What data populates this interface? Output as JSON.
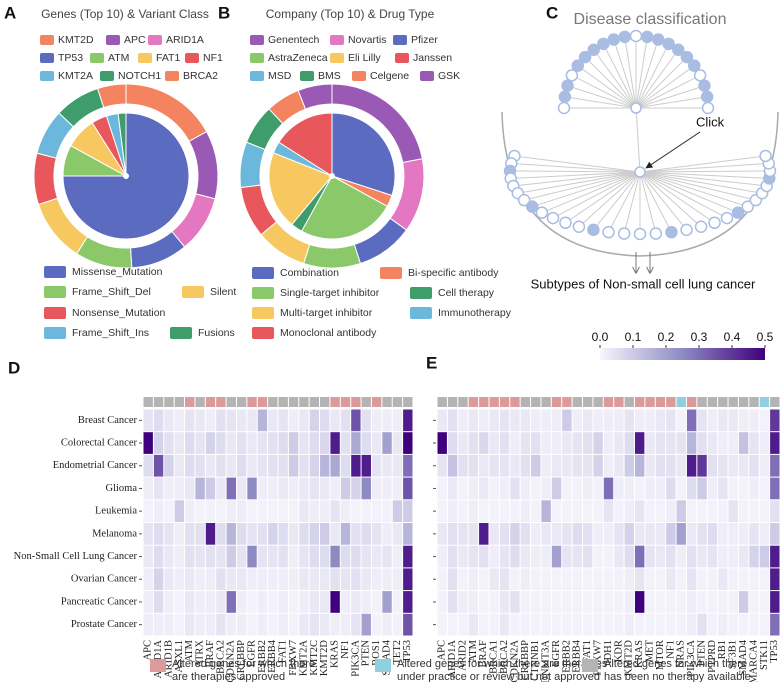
{
  "chart_data": [
    {
      "type": "pie",
      "label": "A",
      "title": "Genes (Top 10) & Variant Class",
      "outer": {
        "names": [
          "KMT2D",
          "APC",
          "ARID1A",
          "TP53",
          "ATM",
          "FAT1",
          "NF1",
          "KMT2A",
          "NOTCH1",
          "BRCA2"
        ],
        "colors": [
          "#f4845f",
          "#9b59b6",
          "#e377c2",
          "#5b6bc0",
          "#8bc86a",
          "#f6c85f",
          "#e8575c",
          "#6cb8dc",
          "#3e9d6b",
          "#f4845f"
        ],
        "values": [
          17,
          12,
          10,
          10,
          10,
          11,
          9,
          8,
          8,
          5
        ]
      },
      "inner": {
        "names": [
          "Missense_Mutation",
          "Frame_Shift_Del",
          "Silent",
          "Nonsense_Mutation",
          "Frame_Shift_Ins",
          "Fusions"
        ],
        "colors": [
          "#5b6bc0",
          "#8bc86a",
          "#f6c85f",
          "#e8575c",
          "#6cb8dc",
          "#3e9d6b"
        ],
        "values": [
          75,
          8,
          8,
          4,
          3,
          2
        ]
      }
    },
    {
      "type": "pie",
      "label": "B",
      "title": "Company (Top 10) & Drug Type",
      "outer": {
        "names": [
          "Genentech",
          "Novartis",
          "Pfizer",
          "AstraZeneca",
          "Eli Lilly",
          "Janssen",
          "MSD",
          "BMS",
          "Celgene",
          "GSK"
        ],
        "colors": [
          "#9b59b6",
          "#e377c2",
          "#5b6bc0",
          "#8bc86a",
          "#f6c85f",
          "#e8575c",
          "#6cb8dc",
          "#3e9d6b",
          "#f4845f",
          "#9b59b6"
        ],
        "values": [
          22,
          13,
          10,
          10,
          9,
          9,
          8,
          7,
          6,
          6
        ]
      },
      "inner": {
        "names": [
          "Combination",
          "Bi-specific antibody",
          "Single-target inhibitor",
          "Cell therapy",
          "Multi-target inhibitor",
          "Immunotherapy",
          "Monoclonal antibody"
        ],
        "colors": [
          "#5b6bc0",
          "#f4845f",
          "#8bc86a",
          "#3e9d6b",
          "#f6c85f",
          "#6cb8dc",
          "#e8575c"
        ],
        "values": [
          30,
          3,
          25,
          3,
          20,
          3,
          16
        ]
      }
    },
    {
      "type": "heatmap",
      "label": "D",
      "rows": [
        "Breast Cancer",
        "Colorectal Cancer",
        "Endometrial Cancer",
        "Glioma",
        "Leukemia",
        "Melanoma",
        "Non-Small Cell Lung Cancer",
        "Ovarian Cancer",
        "Pancreatic Cancer",
        "Prostate Cancer"
      ],
      "columns": [
        "APC",
        "ARID1A",
        "ARID1B",
        "ASXL1",
        "ATM",
        "ATRX",
        "BRAF",
        "BRCA2",
        "CDKN2A",
        "CREBBP",
        "EGFR",
        "ERBB2",
        "ERBB4",
        "FAT1",
        "FBXW7",
        "KMT2A",
        "KMT2C",
        "KMT2D",
        "KRAS",
        "NF1",
        "PIK3CA",
        "PTEN",
        "ROS1",
        "SMAD4",
        "TET2",
        "TP53"
      ],
      "column_colors": [
        "#b4b4b4",
        "#b4b4b4",
        "#b4b4b4",
        "#b4b4b4",
        "#dc9a9a",
        "#b4b4b4",
        "#dc9a9a",
        "#dc9a9a",
        "#b4b4b4",
        "#b4b4b4",
        "#dc9a9a",
        "#dc9a9a",
        "#b4b4b4",
        "#b4b4b4",
        "#b4b4b4",
        "#b4b4b4",
        "#b4b4b4",
        "#b4b4b4",
        "#dc9a9a",
        "#dc9a9a",
        "#dc9a9a",
        "#b4b4b4",
        "#dc9a9a",
        "#b4b4b4",
        "#b4b4b4",
        "#b4b4b4"
      ],
      "values": [
        [
          0.04,
          0.06,
          0.03,
          0.02,
          0.04,
          0.03,
          0.02,
          0.05,
          0.04,
          0.03,
          0.03,
          0.15,
          0.03,
          0.04,
          0.02,
          0.03,
          0.08,
          0.06,
          0.03,
          0.05,
          0.35,
          0.05,
          0.02,
          0.02,
          0.02,
          0.45
        ],
        [
          0.5,
          0.08,
          0.05,
          0.03,
          0.06,
          0.04,
          0.08,
          0.06,
          0.03,
          0.05,
          0.03,
          0.04,
          0.05,
          0.06,
          0.1,
          0.04,
          0.06,
          0.07,
          0.45,
          0.05,
          0.18,
          0.06,
          0.03,
          0.2,
          0.03,
          0.5
        ],
        [
          0.06,
          0.35,
          0.08,
          0.03,
          0.06,
          0.05,
          0.03,
          0.05,
          0.03,
          0.06,
          0.03,
          0.04,
          0.05,
          0.05,
          0.1,
          0.05,
          0.08,
          0.15,
          0.18,
          0.06,
          0.45,
          0.45,
          0.04,
          0.03,
          0.03,
          0.3
        ],
        [
          0.02,
          0.04,
          0.02,
          0.02,
          0.03,
          0.15,
          0.1,
          0.03,
          0.3,
          0.03,
          0.25,
          0.02,
          0.02,
          0.03,
          0.02,
          0.03,
          0.04,
          0.03,
          0.02,
          0.1,
          0.08,
          0.25,
          0.02,
          0.02,
          0.02,
          0.35
        ],
        [
          0.01,
          0.02,
          0.01,
          0.1,
          0.02,
          0.01,
          0.01,
          0.01,
          0.02,
          0.02,
          0.01,
          0.01,
          0.01,
          0.01,
          0.01,
          0.03,
          0.02,
          0.02,
          0.04,
          0.02,
          0.01,
          0.01,
          0.01,
          0.01,
          0.1,
          0.1
        ],
        [
          0.04,
          0.06,
          0.04,
          0.02,
          0.05,
          0.05,
          0.45,
          0.06,
          0.15,
          0.06,
          0.04,
          0.05,
          0.08,
          0.06,
          0.03,
          0.06,
          0.08,
          0.1,
          0.03,
          0.15,
          0.05,
          0.06,
          0.04,
          0.02,
          0.03,
          0.15
        ],
        [
          0.03,
          0.06,
          0.03,
          0.02,
          0.05,
          0.04,
          0.05,
          0.04,
          0.1,
          0.04,
          0.25,
          0.04,
          0.04,
          0.05,
          0.02,
          0.04,
          0.06,
          0.06,
          0.25,
          0.06,
          0.06,
          0.04,
          0.03,
          0.04,
          0.02,
          0.45
        ],
        [
          0.02,
          0.08,
          0.03,
          0.02,
          0.03,
          0.02,
          0.02,
          0.05,
          0.03,
          0.03,
          0.02,
          0.02,
          0.02,
          0.02,
          0.02,
          0.03,
          0.03,
          0.03,
          0.05,
          0.04,
          0.05,
          0.03,
          0.02,
          0.02,
          0.02,
          0.45
        ],
        [
          0.02,
          0.06,
          0.02,
          0.01,
          0.03,
          0.02,
          0.02,
          0.03,
          0.3,
          0.02,
          0.01,
          0.02,
          0.01,
          0.02,
          0.01,
          0.02,
          0.03,
          0.03,
          0.5,
          0.02,
          0.03,
          0.02,
          0.01,
          0.2,
          0.01,
          0.45
        ],
        [
          0.02,
          0.02,
          0.02,
          0.01,
          0.03,
          0.02,
          0.02,
          0.04,
          0.02,
          0.02,
          0.01,
          0.02,
          0.01,
          0.02,
          0.01,
          0.03,
          0.04,
          0.03,
          0.02,
          0.02,
          0.04,
          0.2,
          0.01,
          0.02,
          0.01,
          0.35
        ]
      ]
    },
    {
      "type": "heatmap",
      "label": "E",
      "columns": [
        "APC",
        "ARID1A",
        "ARID2",
        "ATM",
        "BRAF",
        "BRCA1",
        "BRCA2",
        "CDKN2A",
        "CREBBP",
        "CTNNB1",
        "DNMT3A",
        "EGFR",
        "ERBB2",
        "ERBB4",
        "FAT1",
        "FBXW7",
        "IDH1",
        "KDR",
        "KMT2D",
        "KRAS",
        "MET",
        "MTOR",
        "NF1",
        "NRAS",
        "PIK3CA",
        "PTEN",
        "PTPRD",
        "RB1",
        "SF3B1",
        "SMAD4",
        "SMARCA4",
        "STK11",
        "TP53"
      ],
      "column_colors": [
        "#b4b4b4",
        "#b4b4b4",
        "#b4b4b4",
        "#dc9a9a",
        "#dc9a9a",
        "#dc9a9a",
        "#dc9a9a",
        "#dc9a9a",
        "#b4b4b4",
        "#b4b4b4",
        "#b4b4b4",
        "#dc9a9a",
        "#dc9a9a",
        "#b4b4b4",
        "#b4b4b4",
        "#b4b4b4",
        "#dc9a9a",
        "#dc9a9a",
        "#b4b4b4",
        "#dc9a9a",
        "#dc9a9a",
        "#dc9a9a",
        "#dc9a9a",
        "#8fd0e0",
        "#dc9a9a",
        "#b4b4b4",
        "#b4b4b4",
        "#b4b4b4",
        "#b4b4b4",
        "#b4b4b4",
        "#b4b4b4",
        "#8fd0e0",
        "#b4b4b4"
      ],
      "values": [
        [
          0.03,
          0.05,
          0.02,
          0.03,
          0.02,
          0.03,
          0.04,
          0.03,
          0.03,
          0.02,
          0.02,
          0.02,
          0.1,
          0.02,
          0.03,
          0.02,
          0.02,
          0.02,
          0.04,
          0.02,
          0.02,
          0.03,
          0.04,
          0.01,
          0.3,
          0.04,
          0.02,
          0.03,
          0.03,
          0.02,
          0.02,
          0.01,
          0.4
        ],
        [
          0.5,
          0.06,
          0.03,
          0.05,
          0.07,
          0.03,
          0.05,
          0.02,
          0.04,
          0.05,
          0.02,
          0.02,
          0.03,
          0.04,
          0.05,
          0.08,
          0.02,
          0.03,
          0.06,
          0.45,
          0.03,
          0.04,
          0.04,
          0.04,
          0.15,
          0.05,
          0.03,
          0.02,
          0.02,
          0.12,
          0.04,
          0.02,
          0.45
        ],
        [
          0.04,
          0.12,
          0.05,
          0.05,
          0.03,
          0.04,
          0.04,
          0.03,
          0.05,
          0.1,
          0.02,
          0.03,
          0.03,
          0.04,
          0.04,
          0.08,
          0.02,
          0.03,
          0.1,
          0.15,
          0.03,
          0.05,
          0.05,
          0.03,
          0.45,
          0.4,
          0.05,
          0.04,
          0.03,
          0.03,
          0.05,
          0.02,
          0.3
        ],
        [
          0.01,
          0.03,
          0.01,
          0.02,
          0.03,
          0.01,
          0.02,
          0.05,
          0.02,
          0.01,
          0.02,
          0.1,
          0.01,
          0.01,
          0.02,
          0.01,
          0.3,
          0.02,
          0.02,
          0.01,
          0.02,
          0.02,
          0.06,
          0.01,
          0.06,
          0.1,
          0.02,
          0.04,
          0.01,
          0.01,
          0.02,
          0.01,
          0.3
        ],
        [
          0.01,
          0.02,
          0.01,
          0.02,
          0.01,
          0.01,
          0.01,
          0.01,
          0.02,
          0.01,
          0.15,
          0.01,
          0.01,
          0.01,
          0.01,
          0.01,
          0.04,
          0.01,
          0.02,
          0.04,
          0.01,
          0.01,
          0.02,
          0.1,
          0.01,
          0.01,
          0.01,
          0.01,
          0.04,
          0.01,
          0.01,
          0.01,
          0.05
        ],
        [
          0.03,
          0.05,
          0.04,
          0.04,
          0.45,
          0.03,
          0.05,
          0.08,
          0.05,
          0.02,
          0.03,
          0.03,
          0.04,
          0.06,
          0.05,
          0.02,
          0.02,
          0.04,
          0.08,
          0.03,
          0.03,
          0.03,
          0.1,
          0.2,
          0.03,
          0.05,
          0.06,
          0.02,
          0.02,
          0.02,
          0.04,
          0.02,
          0.1
        ],
        [
          0.02,
          0.05,
          0.03,
          0.04,
          0.05,
          0.02,
          0.04,
          0.06,
          0.03,
          0.02,
          0.02,
          0.2,
          0.04,
          0.04,
          0.05,
          0.01,
          0.01,
          0.03,
          0.06,
          0.3,
          0.04,
          0.03,
          0.05,
          0.02,
          0.05,
          0.03,
          0.04,
          0.02,
          0.02,
          0.03,
          0.08,
          0.1,
          0.45
        ],
        [
          0.01,
          0.05,
          0.01,
          0.02,
          0.01,
          0.03,
          0.04,
          0.01,
          0.02,
          0.01,
          0.01,
          0.01,
          0.01,
          0.01,
          0.01,
          0.01,
          0.01,
          0.01,
          0.02,
          0.04,
          0.01,
          0.01,
          0.03,
          0.01,
          0.04,
          0.01,
          0.01,
          0.03,
          0.01,
          0.01,
          0.01,
          0.01,
          0.45
        ],
        [
          0.01,
          0.05,
          0.02,
          0.02,
          0.01,
          0.01,
          0.03,
          0.05,
          0.01,
          0.01,
          0.01,
          0.01,
          0.01,
          0.01,
          0.01,
          0.01,
          0.01,
          0.01,
          0.02,
          0.5,
          0.01,
          0.01,
          0.01,
          0.01,
          0.02,
          0.01,
          0.01,
          0.01,
          0.01,
          0.1,
          0.01,
          0.01,
          0.45
        ],
        [
          0.01,
          0.01,
          0.01,
          0.03,
          0.01,
          0.01,
          0.03,
          0.01,
          0.01,
          0.01,
          0.01,
          0.01,
          0.01,
          0.01,
          0.01,
          0.01,
          0.01,
          0.01,
          0.02,
          0.01,
          0.01,
          0.01,
          0.01,
          0.01,
          0.02,
          0.05,
          0.01,
          0.02,
          0.01,
          0.01,
          0.01,
          0.01,
          0.3
        ]
      ]
    }
  ],
  "colorbar": {
    "vlim": [
      0,
      0.5
    ],
    "colors": [
      "#f7f5fc",
      "#8e8bc4",
      "#3f007d"
    ],
    "ticks": [
      {
        "value": 0,
        "label": "0.0"
      },
      0.1,
      0.2,
      0.3,
      0.4,
      0.5
    ]
  },
  "diagram": {
    "label": "C",
    "title": "Disease classification",
    "annotation": "Click",
    "caption": "Subtypes of Non-small cell lung cancer"
  },
  "legend": {
    "items": [
      {
        "color": "#dc9a9a",
        "lines": [
          "Altered genes for which there",
          "are therapies approved"
        ]
      },
      {
        "color": "#8fd0e0",
        "lines": [
          "Altered genes for which there are therapies",
          "under practice or review but not approved"
        ]
      },
      {
        "color": "#b4b4b4",
        "lines": [
          "Altered genes for which  there",
          "has been no therapy available"
        ]
      }
    ]
  }
}
